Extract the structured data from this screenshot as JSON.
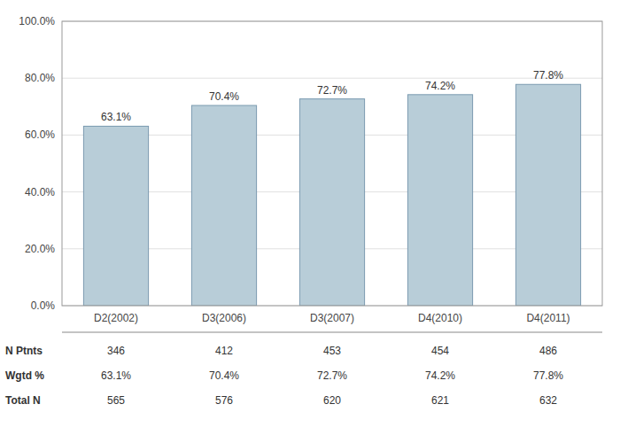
{
  "chart_data": {
    "type": "bar",
    "categories": [
      "D2(2002)",
      "D3(2006)",
      "D3(2007)",
      "D4(2010)",
      "D4(2011)"
    ],
    "values": [
      63.1,
      70.4,
      72.7,
      74.2,
      77.8
    ],
    "value_labels": [
      "63.1%",
      "70.4%",
      "72.7%",
      "74.2%",
      "77.8%"
    ],
    "data_labels": true,
    "color": "#b8cdd8",
    "ylim": [
      0,
      100
    ],
    "yticks": [
      {
        "value": 0,
        "label": "0.0%"
      },
      {
        "value": 20,
        "label": "20.0%"
      },
      {
        "value": 40,
        "label": "40.0%"
      },
      {
        "value": 60,
        "label": "60.0%"
      },
      {
        "value": 80,
        "label": "80.0%"
      },
      {
        "value": 100,
        "label": "100.0%"
      }
    ],
    "grid": true,
    "table": {
      "rows": [
        {
          "label": "N Ptnts",
          "values": [
            346,
            412,
            453,
            454,
            486
          ]
        },
        {
          "label": "Wgtd %",
          "values": [
            63.1,
            70.4,
            72.7,
            74.2,
            77.8
          ],
          "value_labels": [
            "63.1%",
            "70.4%",
            "72.7%",
            "74.2%",
            "77.8%"
          ]
        },
        {
          "label": "Total N",
          "values": [
            565,
            576,
            620,
            621,
            632
          ]
        }
      ]
    }
  }
}
